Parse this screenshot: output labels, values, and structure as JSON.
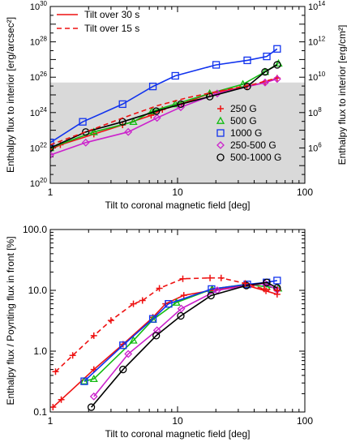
{
  "colors": {
    "g250": "#ee1111",
    "g500": "#11bb11",
    "g1000": "#1133ee",
    "g250_500": "#cc22cc",
    "g500_1000": "#000000",
    "dashed": "#ee1111",
    "shade": "#d9d9d9"
  },
  "chart_data": [
    {
      "type": "line",
      "xlabel": "Tilt to coronal magnetic field [deg]",
      "ylabel": "Enthalpy flux to interior [erg/arcsec²]",
      "ylabel_right": "Enthalpy flux to interior [erg/cm²]",
      "xscale": "log",
      "yscale": "log",
      "xlim": [
        1,
        100
      ],
      "ylim": [
        1e+20,
        1e+30
      ],
      "ylim_right": [
        10000.0,
        100000000000000.0
      ],
      "x_ticks": [
        1,
        10,
        100
      ],
      "x_tick_labels": [
        "1",
        "10",
        "100"
      ],
      "y_ticks": [
        1e+20,
        1e+22,
        1e+24,
        1e+26,
        1e+28,
        1e+30
      ],
      "y_tick_labels": [
        {
          "base": "10",
          "exp": "20"
        },
        {
          "base": "10",
          "exp": "22"
        },
        {
          "base": "10",
          "exp": "24"
        },
        {
          "base": "10",
          "exp": "26"
        },
        {
          "base": "10",
          "exp": "28"
        },
        {
          "base": "10",
          "exp": "30"
        }
      ],
      "y_ticks_right": [
        1000000.0,
        100000000.0,
        10000000000.0,
        1000000000000.0,
        100000000000000.0
      ],
      "y_tick_labels_right": [
        {
          "base": "10",
          "exp": "6"
        },
        {
          "base": "10",
          "exp": "8"
        },
        {
          "base": "10",
          "exp": "10"
        },
        {
          "base": "10",
          "exp": "12"
        },
        {
          "base": "10",
          "exp": "14"
        }
      ],
      "shaded_region": {
        "y_from": 1e+20,
        "y_to": 5e+25
      },
      "legend_lines": [
        {
          "label": "Tilt over 30 s",
          "style": "solid"
        },
        {
          "label": "Tilt over 15 s",
          "style": "dashed"
        }
      ],
      "legend_lines_placement": "top-left",
      "legend_markers_placement": "right",
      "series": [
        {
          "name": "250 G",
          "color_key": "g250",
          "marker": "plus",
          "x": [
            1,
            1.2,
            2.2,
            3.7,
            6.2,
            7.6,
            10.7,
            17.9,
            35.1,
            48.7,
            60.6
          ],
          "y": [
            8e+21,
            1.5e+22,
            6e+22,
            2e+23,
            7e+23,
            1.5e+24,
            3e+24,
            1.2e+25,
            3e+25,
            5e+25,
            9e+25
          ]
        },
        {
          "name": "500 G",
          "color_key": "g500",
          "marker": "triangle",
          "x": [
            1,
            2.2,
            4.5,
            6.3,
            9.6,
            17.9,
            32.6,
            48.7,
            62.1
          ],
          "y": [
            1e+22,
            8e+22,
            3e+23,
            1.2e+24,
            3e+24,
            1.2e+25,
            4e+25,
            2e+26,
            6e+26
          ]
        },
        {
          "name": "1000 G",
          "color_key": "g1000",
          "marker": "square",
          "x": [
            1,
            1.8,
            3.7,
            6.4,
            9.6,
            20.1,
            35.3,
            50.2,
            60.6
          ],
          "y": [
            2e+22,
            3e+23,
            3e+24,
            3e+25,
            1.2e+26,
            5e+26,
            9e+26,
            1.5e+27,
            4e+27
          ]
        },
        {
          "name": "250-500 G",
          "color_key": "g250_500",
          "marker": "diamond",
          "x": [
            1,
            1.9,
            4.1,
            6.9,
            10.6,
            20.5,
            48.7,
            60.6
          ],
          "y": [
            4e+21,
            2e+22,
            8e+22,
            5e+23,
            2e+24,
            1.2e+25,
            5e+25,
            8e+25
          ]
        },
        {
          "name": "500-1000 G",
          "color_key": "g500_1000",
          "marker": "circle",
          "x": [
            1,
            1.9,
            3.7,
            6.8,
            10.6,
            17.9,
            35.3,
            48.7,
            60.6
          ],
          "y": [
            1e+22,
            8e+22,
            3e+23,
            1.2e+24,
            3e+24,
            8e+24,
            3e+25,
            2e+26,
            5e+26
          ]
        }
      ],
      "dashed_series": {
        "x": [
          1,
          2.2,
          4,
          7,
          12,
          20,
          40,
          60
        ],
        "y": [
          1.5e+22,
          1.2e+23,
          6e+23,
          2.5e+24,
          7e+24,
          1.5e+25,
          4e+25,
          9e+25
        ]
      }
    },
    {
      "type": "line",
      "xlabel": "Tilt to coronal magnetic field [deg]",
      "ylabel": "Enthalpy flux / Poynting flux in front [%]",
      "xscale": "log",
      "yscale": "log",
      "xlim": [
        1,
        100
      ],
      "ylim": [
        0.1,
        100
      ],
      "x_ticks": [
        1,
        10,
        100
      ],
      "x_tick_labels": [
        "1",
        "10",
        "100"
      ],
      "y_ticks": [
        0.1,
        1,
        10,
        100
      ],
      "y_tick_labels": [
        "0.1",
        "1.0",
        "10.0",
        "100.0"
      ],
      "series": [
        {
          "name": "250 G",
          "color_key": "g250",
          "marker": "plus",
          "x": [
            1.05,
            1.22,
            2.2,
            3.73,
            6.4,
            8.05,
            11.2,
            18.7,
            35.1,
            49.5,
            60.6
          ],
          "y": [
            0.12,
            0.16,
            0.5,
            1.3,
            3.6,
            6,
            8.3,
            10,
            12,
            9.8,
            8.6
          ]
        },
        {
          "name": "500 G",
          "color_key": "g500",
          "marker": "triangle",
          "x": [
            1.85,
            2.2,
            4.5,
            6.4,
            9.8,
            18.7,
            34.2,
            50,
            61.8
          ],
          "y": [
            0.32,
            0.35,
            1.5,
            3.3,
            6.3,
            10.5,
            12.5,
            11.5,
            10.8
          ]
        },
        {
          "name": "1000 G",
          "color_key": "g1000",
          "marker": "square",
          "x": [
            1.85,
            3.73,
            6.4,
            8.5,
            18.5,
            35.3,
            50,
            60.6
          ],
          "y": [
            0.32,
            1.25,
            3.4,
            6,
            10.5,
            12.5,
            13.5,
            14.5
          ]
        },
        {
          "name": "250-500 G",
          "color_key": "g250_500",
          "marker": "diamond",
          "x": [
            2.2,
            4.1,
            6.9,
            10.7,
            20.5,
            48.7,
            60.6
          ],
          "y": [
            0.18,
            0.9,
            2.2,
            5,
            10,
            13,
            10.2
          ]
        },
        {
          "name": "500-1000 G",
          "color_key": "g500_1000",
          "marker": "circle",
          "x": [
            2.1,
            3.73,
            6.8,
            10.6,
            18.3,
            34.7,
            50.2,
            60.6
          ],
          "y": [
            0.12,
            0.5,
            1.8,
            3.8,
            8.2,
            12,
            13.5,
            11
          ]
        }
      ],
      "dashed_series": {
        "x": [
          1.1,
          1.5,
          2.2,
          3,
          4.5,
          5.3,
          7.2,
          11,
          18,
          22,
          34,
          48,
          61
        ],
        "y": [
          0.46,
          0.85,
          1.8,
          3.2,
          6,
          6.8,
          10.8,
          15.5,
          16,
          16,
          13,
          10.5,
          10
        ]
      }
    }
  ]
}
